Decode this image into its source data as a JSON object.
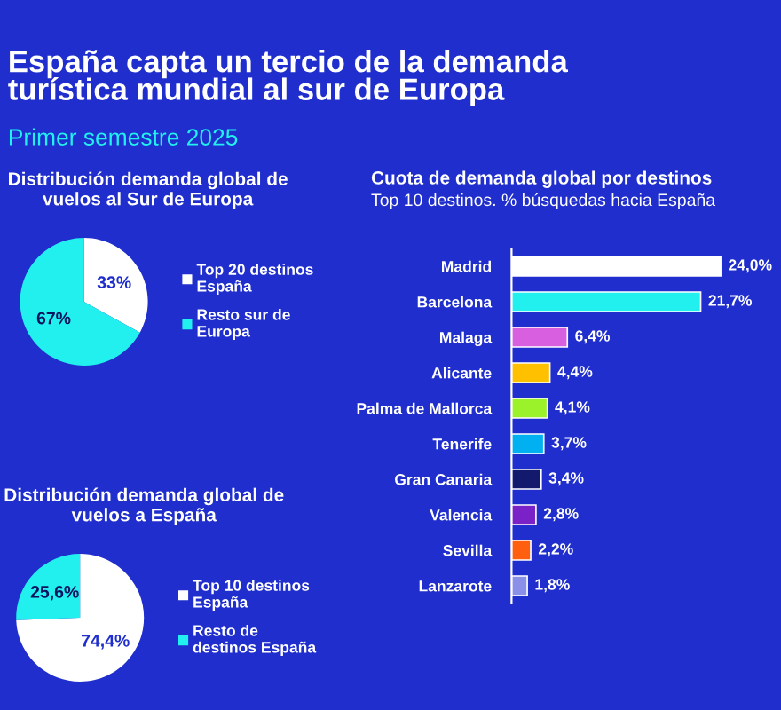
{
  "chart_data": [
    {
      "type": "other",
      "title": "España capta un tercio de la demanda\nturística mundial al sur de Europa",
      "subtitle": "Primer semestre 2025"
    },
    {
      "type": "pie",
      "title": "Distribución demanda global de\nvuelos al Sur de Europa",
      "categories": [
        "Top 20 destinos\nEspaña",
        "Resto sur de\nEuropa"
      ],
      "values": [
        33,
        67
      ],
      "colors": [
        "#ffffff",
        "#22f0ee"
      ],
      "value_labels": [
        "33%",
        "67%"
      ],
      "legend": "right"
    },
    {
      "type": "pie",
      "title": "Distribución demanda global de\nvuelos a España",
      "categories": [
        "Top 10 destinos\nEspaña",
        "Resto de\ndestinos España"
      ],
      "values": [
        74.4,
        25.6
      ],
      "colors": [
        "#ffffff",
        "#22f0ee"
      ],
      "value_labels": [
        "74,4%",
        "25,6%"
      ],
      "legend": "right"
    },
    {
      "type": "bar",
      "orientation": "horizontal",
      "title": "Cuota de demanda global por destinos",
      "subtitle": "Top 10 destinos. % búsquedas hacia España",
      "categories": [
        "Madrid",
        "Barcelona",
        "Malaga",
        "Alicante",
        "Palma de Mallorca",
        "Tenerife",
        "Gran Canaria",
        "Valencia",
        "Sevilla",
        "Lanzarote"
      ],
      "values": [
        24.0,
        21.7,
        6.4,
        4.4,
        4.1,
        3.7,
        3.4,
        2.8,
        2.2,
        1.8
      ],
      "colors": [
        "#ffffff",
        "#22f0ee",
        "#d85fe0",
        "#ffc000",
        "#9cf22a",
        "#00b0f0",
        "#131a6e",
        "#7a22c8",
        "#ff6010",
        "#8a90e8"
      ],
      "value_labels": [
        "24,0%",
        "21,7%",
        "6,4%",
        "4,4%",
        "4,1%",
        "3,7%",
        "3,4%",
        "2,8%",
        "2,2%",
        "1,8%"
      ]
    }
  ]
}
